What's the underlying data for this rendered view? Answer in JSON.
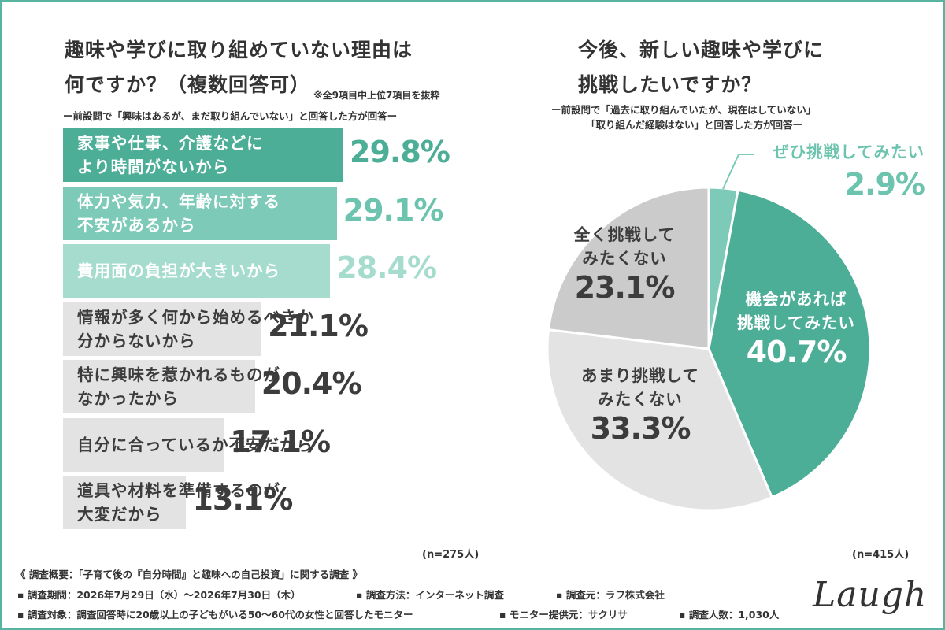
{
  "left": {
    "title_line1": "趣味や学びに取り組めていない理由は",
    "title_line2": "何ですか？（複数回答可）",
    "note": "※全9項目中上位7項目を抜粋",
    "subtitle": "ー前設問で「興味はあるが、まだ取り組んでいない」と回答した方が回答ー",
    "n_label": "(n=275人)"
  },
  "right": {
    "title_line1": "今後、新しい趣味や学びに",
    "title_line2": "挑戦したいですか？",
    "subtitle_line1": "ー前設問で「過去に取り組んでいたが、現在はしていない」",
    "subtitle_line2": "「取り組んだ経験はない」と回答した方が回答ー",
    "n_label": "(n=415人)"
  },
  "chart_data": [
    {
      "type": "bar",
      "orientation": "horizontal",
      "categories": [
        [
          "家事や仕事、介護などに",
          "より時間がないから"
        ],
        [
          "体力や気力、年齢に対する",
          "不安があるから"
        ],
        [
          "費用面の負担が大きいから"
        ],
        [
          "情報が多く何から始めるべきか",
          "分からないから"
        ],
        [
          "特に興味を惹かれるものが",
          "なかったから"
        ],
        [
          "自分に合っているか不安だから"
        ],
        [
          "道具や材料を準備するのが",
          "大変だから"
        ]
      ],
      "values": [
        29.8,
        29.1,
        28.4,
        21.1,
        20.4,
        17.1,
        13.1
      ],
      "value_labels": [
        "29.8%",
        "29.1%",
        "28.4%",
        "21.1%",
        "20.4%",
        "17.1%",
        "13.1%"
      ],
      "bar_colors": [
        "#4cae96",
        "#7ccab7",
        "#a6dccd",
        "#e3e3e3",
        "#e3e3e3",
        "#e3e3e3",
        "#e3e3e3"
      ],
      "label_colors": [
        "#ffffff",
        "#ffffff",
        "#ffffff",
        "#3c3c3c",
        "#3c3c3c",
        "#3c3c3c",
        "#3c3c3c"
      ],
      "value_colors": [
        "#4cae96",
        "#6cc4ae",
        "#a6dccd",
        "#3c3c3c",
        "#3c3c3c",
        "#3c3c3c",
        "#3c3c3c"
      ]
    },
    {
      "type": "pie",
      "slices": [
        {
          "label": [
            "ぜひ挑戦してみたい"
          ],
          "value": 2.9,
          "value_label": "2.9%",
          "color": "#7ccab7",
          "text_color": "#6cc4ae"
        },
        {
          "label": [
            "機会があれば",
            "挑戦してみたい"
          ],
          "value": 40.7,
          "value_label": "40.7%",
          "color": "#4cae96",
          "text_color": "#ffffff"
        },
        {
          "label": [
            "あまり挑戦して",
            "みたくない"
          ],
          "value": 33.3,
          "value_label": "33.3%",
          "color": "#e3e3e3",
          "text_color": "#3c3c3c"
        },
        {
          "label": [
            "全く挑戦して",
            "みたくない"
          ],
          "value": 23.1,
          "value_label": "23.1%",
          "color": "#cbcbcb",
          "text_color": "#3c3c3c"
        }
      ]
    }
  ],
  "footer": {
    "line1": "《 調査概要：「子育て後の『自分時間』と趣味への自己投資」に関する調査 》",
    "period": "▪ 調査期間：2026年7月29日（水）〜2026年7月30日（木）",
    "method": "▪ 調査方法：インターネット調査",
    "source": "▪ 調査元：ラフ株式会社",
    "target": "▪ 調査対象：調査回答時に20歳以上の子どもがいる50〜60代の女性と回答したモニター",
    "provider": "▪ モニター提供元：サクリサ",
    "count": "▪ 調査人数：1,030人"
  },
  "logo": "Laugh"
}
